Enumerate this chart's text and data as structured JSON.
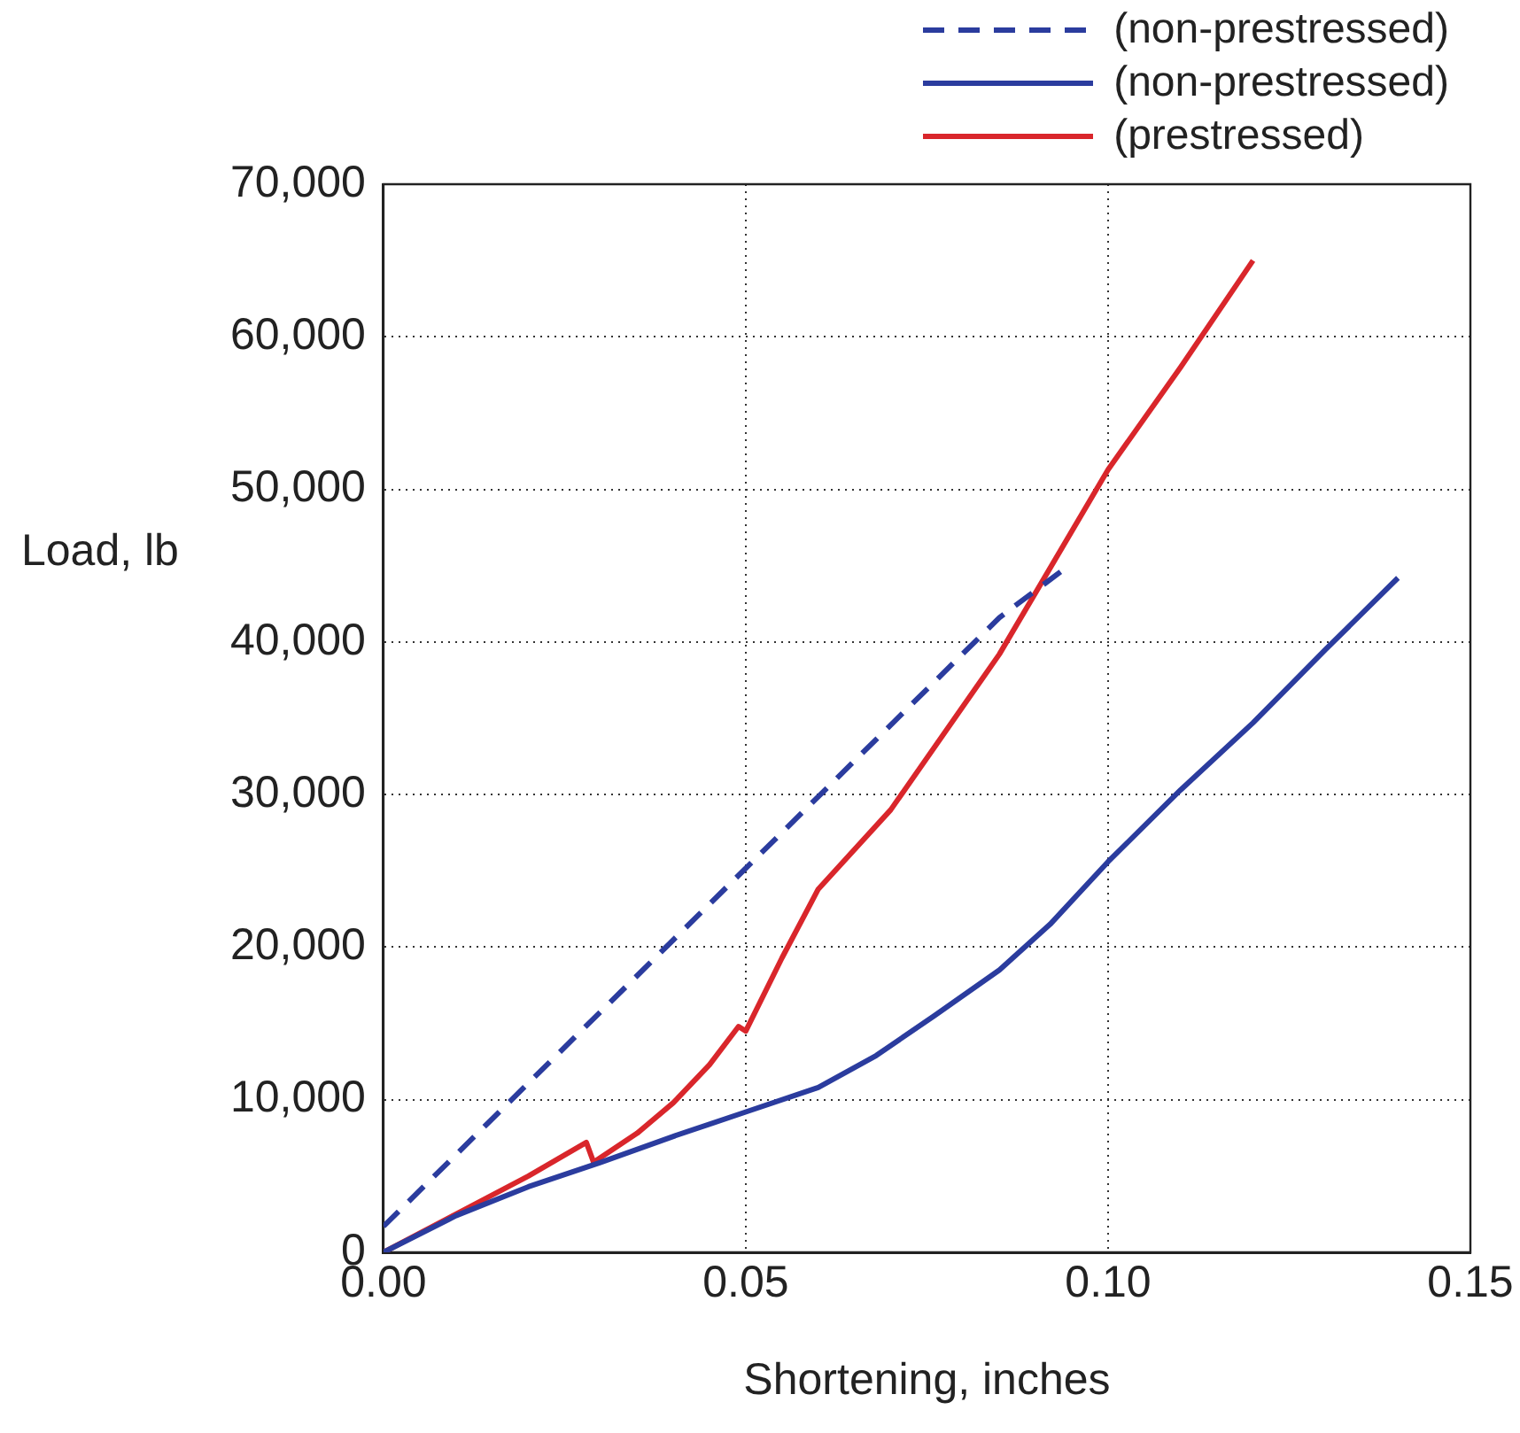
{
  "chart_data": {
    "type": "line",
    "xlabel": "Shortening, inches",
    "ylabel": "Load, lb",
    "xlim": [
      0,
      0.15
    ],
    "xticks": [
      {
        "value": 0,
        "label": "0.00"
      },
      {
        "value": 0.05,
        "label": "0.05"
      },
      {
        "value": 0.1,
        "label": "0.10"
      },
      {
        "value": 0.15,
        "label": "0.15"
      }
    ],
    "ylim": [
      0,
      70000
    ],
    "yticks": [
      {
        "value": 0,
        "label": "0"
      },
      {
        "value": 10000,
        "label": "10,000"
      },
      {
        "value": 20000,
        "label": "20,000"
      },
      {
        "value": 30000,
        "label": "30,000"
      },
      {
        "value": 40000,
        "label": "40,000"
      },
      {
        "value": 50000,
        "label": "50,000"
      },
      {
        "value": 60000,
        "label": "60,000"
      },
      {
        "value": 70000,
        "label": "70,000"
      }
    ],
    "grid": true,
    "legend": "top right",
    "marker": "none",
    "series": [
      {
        "name": "(non-prestressed)",
        "color": "#2b3c9e",
        "line_style": "dashed",
        "x": [
          0,
          0.085,
          0.094
        ],
        "values": [
          1700,
          41600,
          44800
        ]
      },
      {
        "name": "(non-prestressed)",
        "color": "#2b3c9e",
        "line_style": "solid",
        "x": [
          0,
          0.01,
          0.02,
          0.03,
          0.04,
          0.05,
          0.06,
          0.068,
          0.076,
          0.085,
          0.092,
          0.1,
          0.11,
          0.12,
          0.13,
          0.14
        ],
        "values": [
          0,
          2400,
          4300,
          5900,
          7600,
          9200,
          10800,
          12900,
          15500,
          18500,
          21500,
          25600,
          30300,
          34700,
          39500,
          44200
        ]
      },
      {
        "name": "(prestressed)",
        "color": "#d9262b",
        "line_style": "solid",
        "x": [
          0,
          0.01,
          0.02,
          0.028,
          0.029,
          0.035,
          0.04,
          0.045,
          0.049,
          0.05,
          0.055,
          0.06,
          0.07,
          0.085,
          0.1,
          0.11,
          0.12
        ],
        "values": [
          0,
          2500,
          5000,
          7200,
          5900,
          7800,
          9800,
          12300,
          14800,
          14500,
          19300,
          23800,
          29000,
          39200,
          51300,
          58000,
          65000
        ]
      }
    ]
  }
}
